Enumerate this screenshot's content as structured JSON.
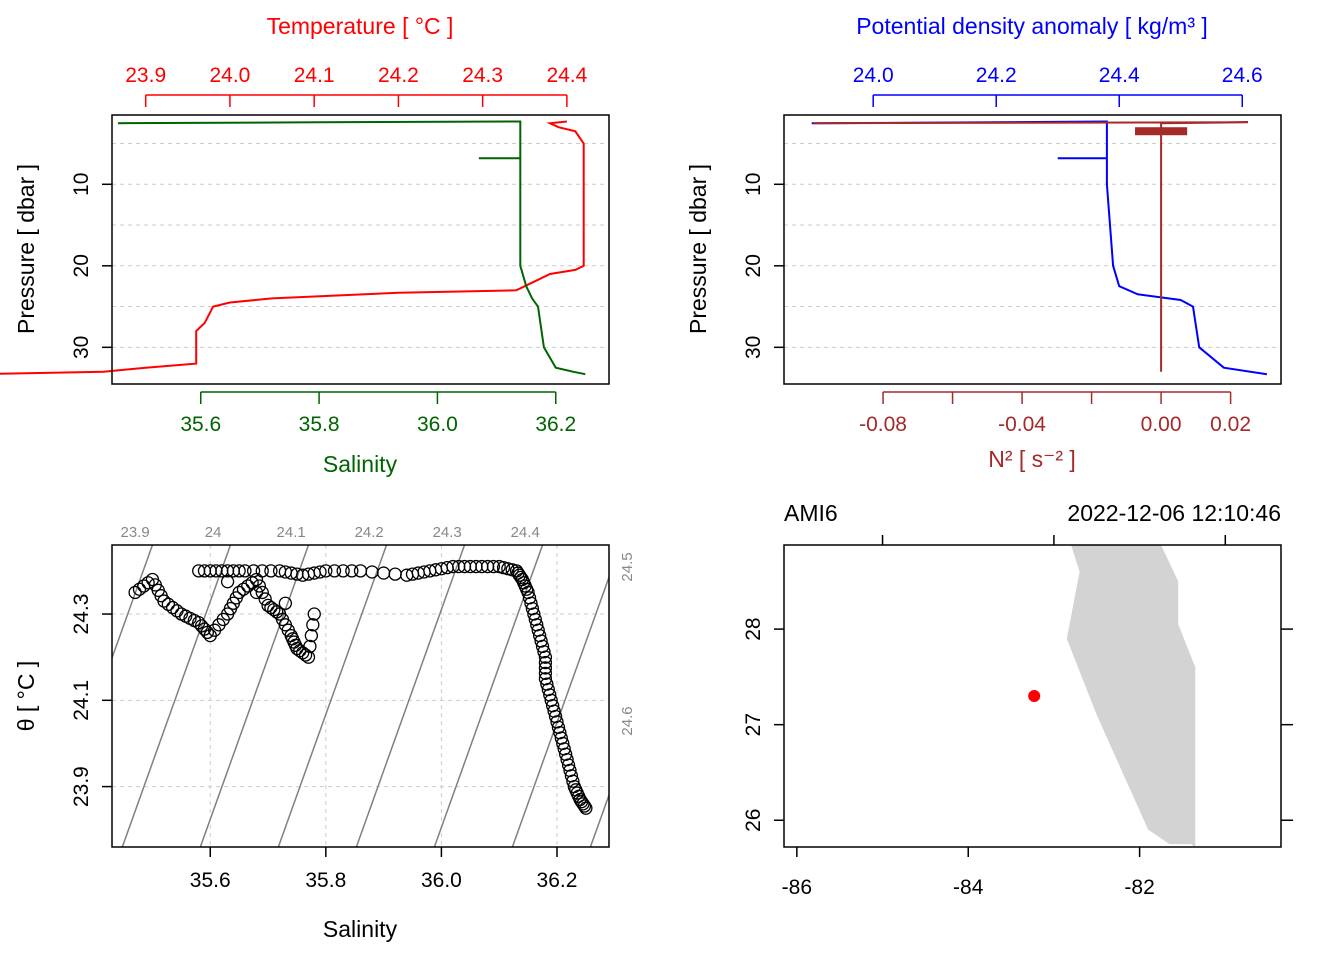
{
  "colors": {
    "temperature": "#ff0000",
    "salinity": "#006400",
    "density": "#0000ff",
    "n2": "#a52a2a",
    "land": "#d3d3d3",
    "station": "#ff0000",
    "isopycnal": "#808080"
  },
  "chart_data": [
    {
      "id": "profile-ts",
      "type": "line",
      "x_top_label": "Temperature [ °C ]",
      "x_bottom_label": "Salinity",
      "ylabel": "Pressure [ dbar ]",
      "y_ticks": [
        "10",
        "20",
        "30"
      ],
      "y_range": [
        34.5,
        1.5
      ],
      "top_ticks": [
        "23.9",
        "24.0",
        "24.1",
        "24.2",
        "24.3",
        "24.4"
      ],
      "top_range": [
        23.86,
        24.45
      ],
      "bottom_ticks": [
        "35.6",
        "35.8",
        "36.0",
        "36.2"
      ],
      "bottom_range": [
        35.45,
        36.29
      ],
      "series": [
        {
          "key": "temperature",
          "axis": "top",
          "points": [
            [
              24.4,
              2.3
            ],
            [
              24.38,
              2.5
            ],
            [
              24.39,
              3
            ],
            [
              24.41,
              3.5
            ],
            [
              24.42,
              5
            ],
            [
              24.42,
              10
            ],
            [
              24.42,
              15
            ],
            [
              24.42,
              20
            ],
            [
              24.41,
              20.5
            ],
            [
              24.38,
              21
            ],
            [
              24.35,
              22.5
            ],
            [
              24.34,
              23
            ],
            [
              24.2,
              23.3
            ],
            [
              24.05,
              24
            ],
            [
              24.0,
              24.5
            ],
            [
              23.98,
              25
            ],
            [
              23.97,
              27
            ],
            [
              23.96,
              28
            ],
            [
              23.96,
              32
            ],
            [
              23.9,
              32.5
            ],
            [
              23.85,
              33
            ],
            [
              23.7,
              33.3
            ]
          ]
        },
        {
          "key": "salinity",
          "axis": "bottom",
          "points": [
            [
              35.46,
              2.5
            ],
            [
              35.8,
              2.4
            ],
            [
              36.14,
              2.3
            ],
            [
              36.14,
              5
            ],
            [
              36.14,
              10
            ],
            [
              36.14,
              20
            ],
            [
              36.15,
              22.5
            ],
            [
              36.16,
              24
            ],
            [
              36.17,
              25
            ],
            [
              36.18,
              30
            ],
            [
              36.2,
              32.5
            ],
            [
              36.23,
              33
            ],
            [
              36.25,
              33.3
            ]
          ]
        }
      ]
    },
    {
      "id": "profile-density",
      "type": "line",
      "x_top_label": "Potential density anomaly [ kg/m³ ]",
      "x_bottom_label": "N² [ s⁻² ]",
      "ylabel": "Pressure [ dbar ]",
      "y_ticks": [
        "10",
        "20",
        "30"
      ],
      "y_range": [
        34.5,
        1.5
      ],
      "top_ticks": [
        "24.0",
        "24.2",
        "24.4",
        "24.6"
      ],
      "top_range": [
        23.855,
        24.663
      ],
      "bottom_ticks": [
        "-0.08",
        "-0.04",
        "0.00",
        "0.02"
      ],
      "bottom_range": [
        -0.1085,
        0.0345
      ],
      "series": [
        {
          "key": "density",
          "axis": "top",
          "points": [
            [
              23.9,
              2.5
            ],
            [
              24.2,
              2.4
            ],
            [
              24.38,
              2.3
            ],
            [
              24.38,
              5
            ],
            [
              24.38,
              10
            ],
            [
              24.39,
              20
            ],
            [
              24.4,
              22.5
            ],
            [
              24.43,
              23.5
            ],
            [
              24.5,
              24.2
            ],
            [
              24.52,
              25
            ],
            [
              24.53,
              30
            ],
            [
              24.57,
              32.5
            ],
            [
              24.64,
              33.3
            ]
          ]
        },
        {
          "key": "n2",
          "axis": "bottom",
          "points": [
            [
              -0.1,
              2.5
            ],
            [
              0.025,
              2.4
            ],
            [
              0.0,
              2.5
            ],
            [
              0.0,
              5
            ],
            [
              0.0,
              20
            ],
            [
              0.0,
              33
            ]
          ]
        }
      ]
    },
    {
      "id": "ts-diagram",
      "type": "scatter",
      "xlabel": "Salinity",
      "ylabel": "θ [ °C ]",
      "x_ticks": [
        "35.6",
        "35.8",
        "36.0",
        "36.2"
      ],
      "x_range": [
        35.43,
        36.29
      ],
      "y_ticks": [
        "23.9",
        "24.1",
        "24.3"
      ],
      "y_range": [
        23.76,
        24.46
      ],
      "isopycnal_labels": [
        "23.9",
        "24",
        "24.1",
        "24.2",
        "24.3",
        "24.4",
        "24.5",
        "24.6"
      ],
      "points": [
        [
          35.47,
          24.35
        ],
        [
          35.5,
          24.38
        ],
        [
          35.52,
          24.33
        ],
        [
          35.55,
          24.3
        ],
        [
          35.58,
          24.28
        ],
        [
          35.6,
          24.25
        ],
        [
          35.63,
          24.3
        ],
        [
          35.65,
          24.35
        ],
        [
          35.68,
          24.38
        ],
        [
          35.7,
          24.32
        ],
        [
          35.72,
          24.3
        ],
        [
          35.74,
          24.25
        ],
        [
          35.75,
          24.22
        ],
        [
          35.77,
          24.2
        ],
        [
          35.78,
          24.3
        ],
        [
          35.58,
          24.4
        ],
        [
          35.62,
          24.4
        ],
        [
          35.66,
          24.4
        ],
        [
          35.72,
          24.4
        ],
        [
          35.76,
          24.39
        ],
        [
          35.8,
          24.4
        ],
        [
          35.86,
          24.4
        ],
        [
          35.94,
          24.39
        ],
        [
          35.98,
          24.4
        ],
        [
          36.02,
          24.41
        ],
        [
          36.06,
          24.41
        ],
        [
          36.1,
          24.41
        ],
        [
          36.13,
          24.4
        ],
        [
          36.14,
          24.38
        ],
        [
          36.15,
          24.35
        ],
        [
          36.16,
          24.3
        ],
        [
          36.17,
          24.25
        ],
        [
          36.18,
          24.2
        ],
        [
          36.18,
          24.15
        ],
        [
          36.19,
          24.1
        ],
        [
          36.2,
          24.05
        ],
        [
          36.21,
          24.0
        ],
        [
          36.22,
          23.95
        ],
        [
          36.23,
          23.9
        ],
        [
          36.24,
          23.87
        ],
        [
          36.25,
          23.85
        ]
      ]
    },
    {
      "id": "station-map",
      "type": "map",
      "station": "AMI6",
      "datetime": "2022-12-06 12:10:46",
      "x_ticks": [
        "-86",
        "-84",
        "-82"
      ],
      "x_range": [
        -86.15,
        -80.35
      ],
      "y_ticks": [
        "26",
        "27",
        "28"
      ],
      "y_range": [
        25.72,
        28.88
      ],
      "point": [
        -83.23,
        27.3
      ],
      "land": [
        [
          -81.75,
          28.88
        ],
        [
          -81.55,
          28.5
        ],
        [
          -81.55,
          28.05
        ],
        [
          -81.35,
          27.6
        ],
        [
          -81.35,
          25.72
        ],
        [
          -81.4,
          25.75
        ],
        [
          -81.65,
          25.75
        ],
        [
          -81.9,
          25.9
        ],
        [
          -82.5,
          27.1
        ],
        [
          -82.85,
          27.9
        ],
        [
          -82.7,
          28.6
        ],
        [
          -82.8,
          28.88
        ]
      ]
    }
  ]
}
